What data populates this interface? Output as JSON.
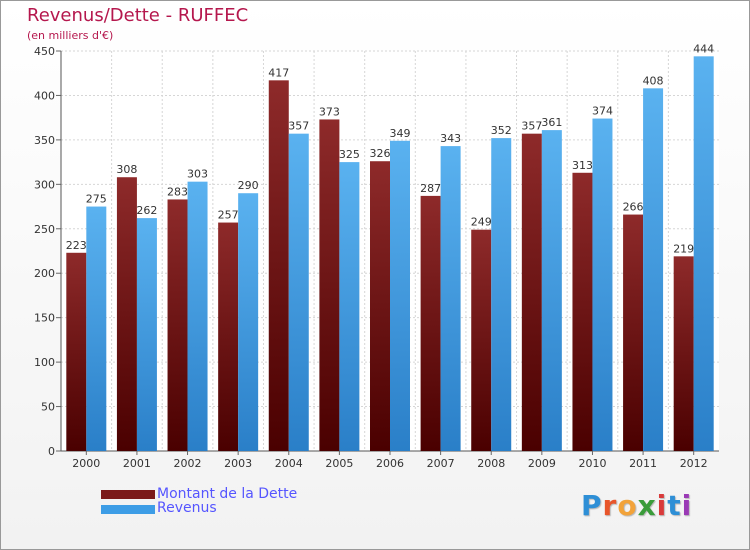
{
  "chart_data": {
    "type": "bar",
    "title": "Revenus/Dette - RUFFEC",
    "subtitle": "(en milliers d'€)",
    "xlabel": "",
    "ylabel": "",
    "ylim": [
      0,
      450
    ],
    "yticks": [
      0,
      50,
      100,
      150,
      200,
      250,
      300,
      350,
      400,
      450
    ],
    "grid": true,
    "categories": [
      "2000",
      "2001",
      "2002",
      "2003",
      "2004",
      "2005",
      "2006",
      "2007",
      "2008",
      "2009",
      "2010",
      "2011",
      "2012"
    ],
    "series": [
      {
        "name": "Montant de la Dette",
        "color": "#7b1a1a",
        "values": [
          223,
          308,
          283,
          257,
          417,
          373,
          326,
          287,
          249,
          357,
          313,
          266,
          219
        ]
      },
      {
        "name": "Revenus",
        "color": "#3d9de6",
        "values": [
          275,
          262,
          303,
          290,
          357,
          325,
          349,
          343,
          352,
          361,
          374,
          408,
          444
        ]
      }
    ],
    "legend": "bottom-left"
  },
  "legend": {
    "items": [
      {
        "label": "Montant de la Dette",
        "color": "#7b1a1a"
      },
      {
        "label": "Revenus",
        "color": "#3d9de6"
      }
    ]
  },
  "logo": {
    "letters": [
      "P",
      "r",
      "o",
      "x",
      "i",
      "t",
      "i"
    ],
    "colors": [
      "#2e8fd6",
      "#e8552a",
      "#f2a33a",
      "#3a9c3a",
      "#d93a3a",
      "#2e8fd6",
      "#9a3ab5"
    ]
  }
}
